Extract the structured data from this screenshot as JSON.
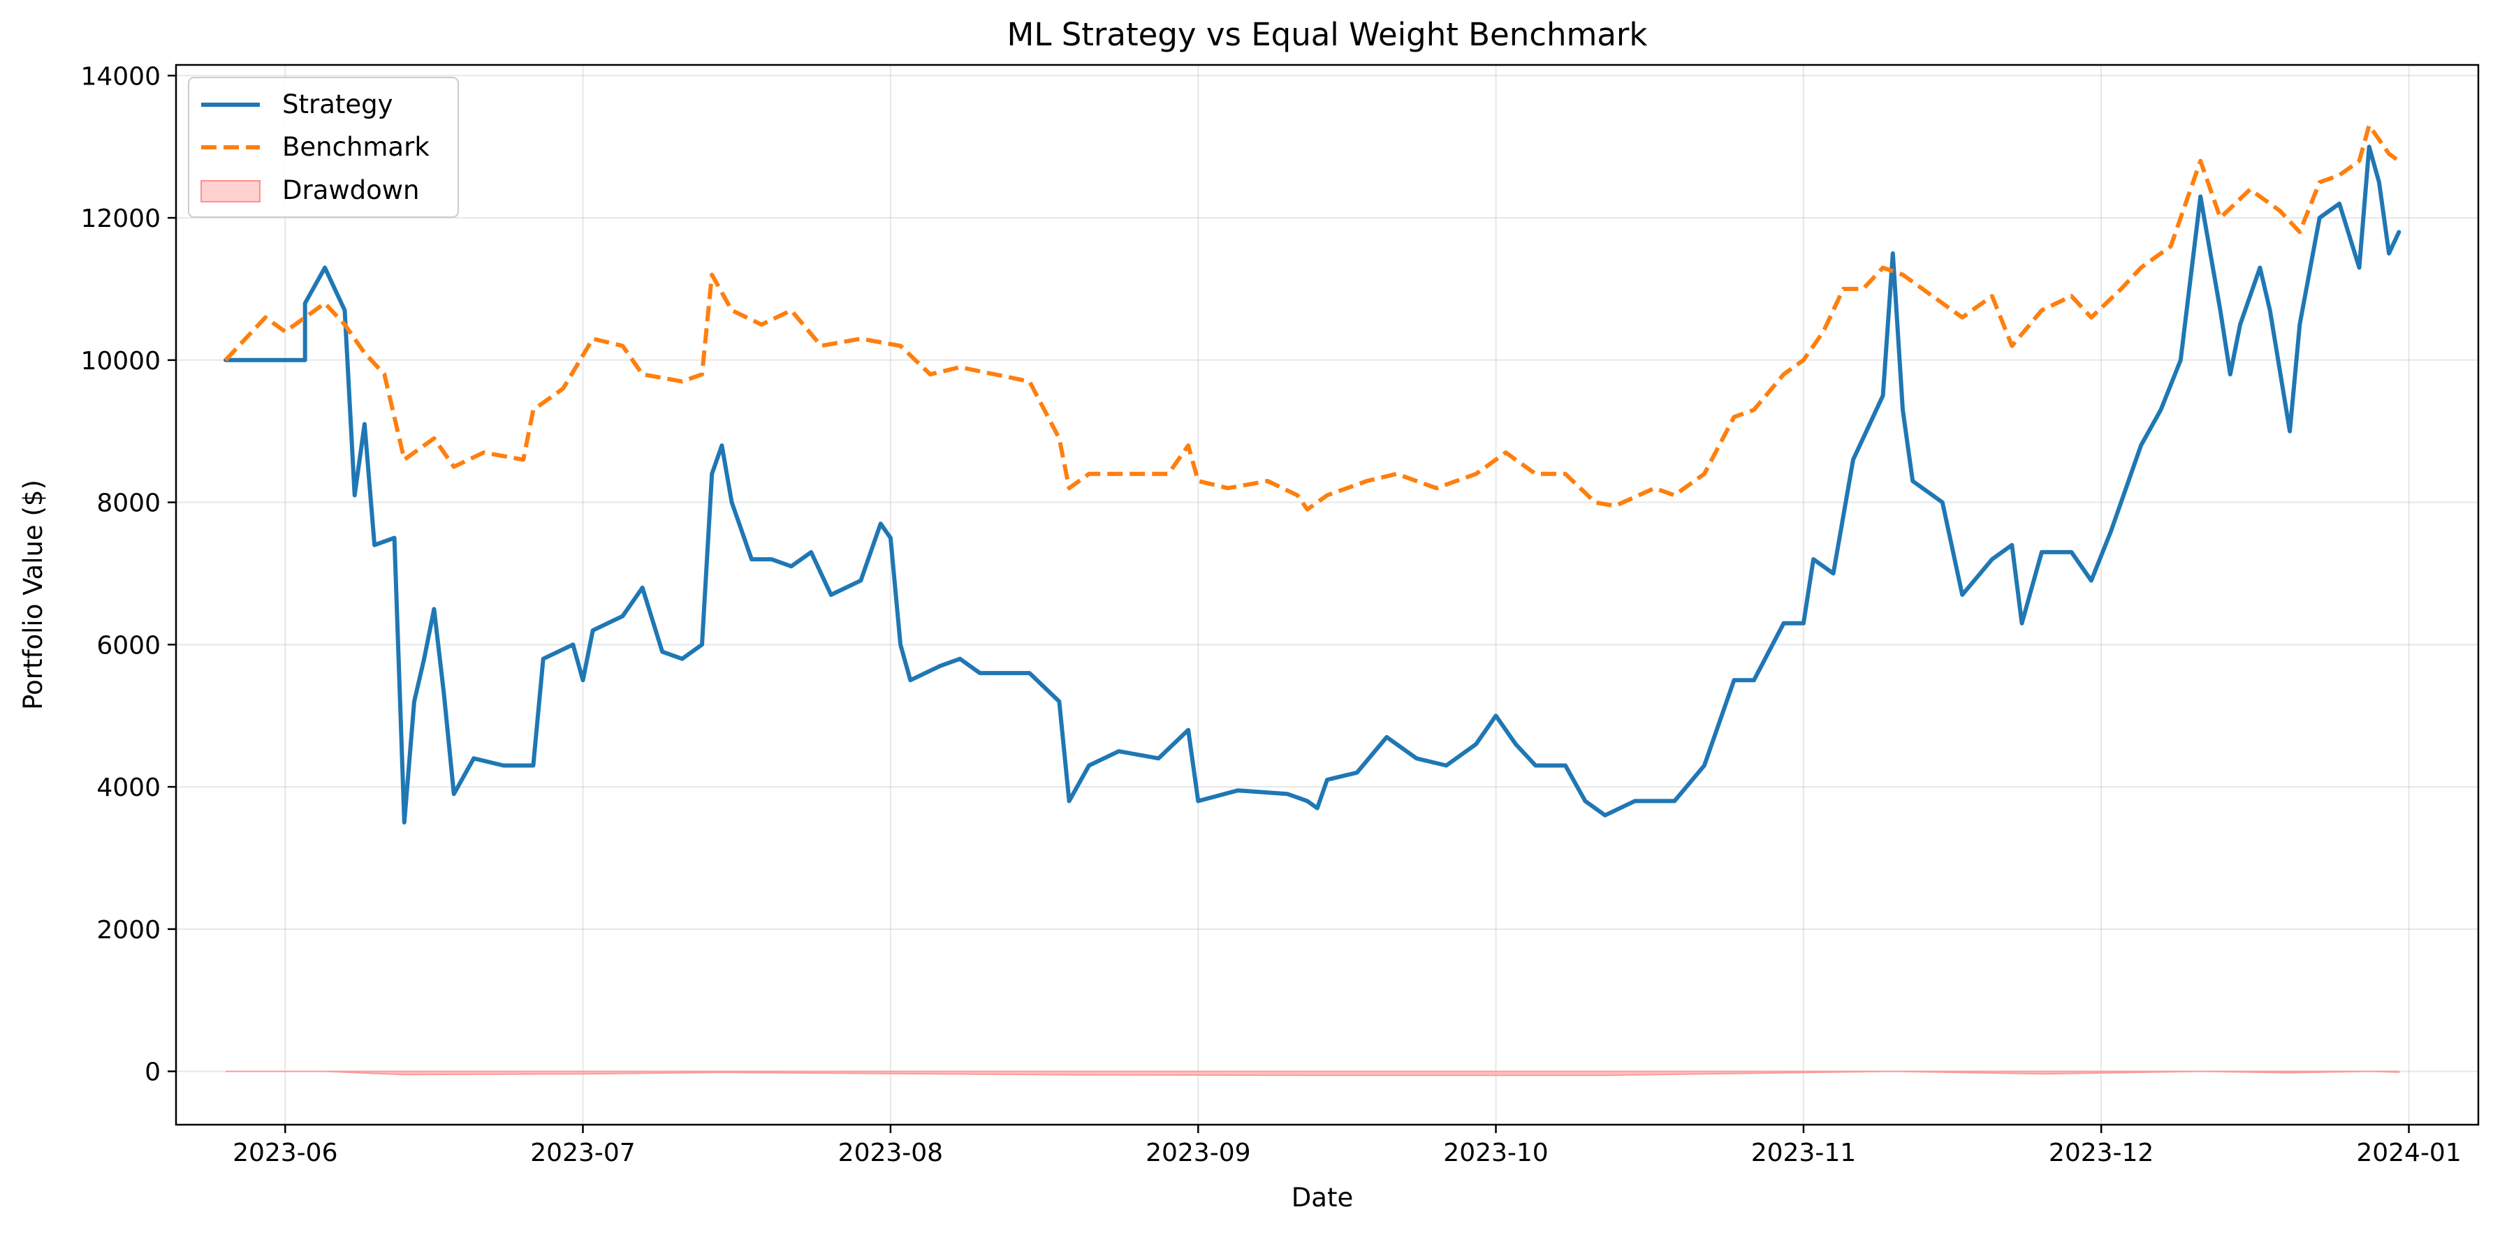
{
  "chart_data": {
    "type": "line",
    "title": "ML Strategy vs Equal Weight Benchmark",
    "xlabel": "Date",
    "ylabel": "Portfolio Value ($)",
    "xlim": [
      "2023-05-21",
      "2024-01-08"
    ],
    "ylim": [
      -750,
      14150
    ],
    "x_ticks": [
      "2023-06-01",
      "2023-07-01",
      "2023-08-01",
      "2023-09-01",
      "2023-10-01",
      "2023-11-01",
      "2023-12-01",
      "2024-01-01"
    ],
    "x_tick_labels": [
      "2023-06",
      "2023-07",
      "2023-08",
      "2023-09",
      "2023-10",
      "2023-11",
      "2023-12",
      "2024-01"
    ],
    "y_ticks": [
      0,
      2000,
      4000,
      6000,
      8000,
      10000,
      12000,
      14000
    ],
    "y_tick_labels": [
      "0",
      "2000",
      "4000",
      "6000",
      "8000",
      "10000",
      "12000",
      "14000"
    ],
    "grid": true,
    "legend_position": "top-left",
    "series": [
      {
        "name": "Strategy",
        "style": "solid",
        "color": "#1f77b4",
        "points": [
          [
            "2023-05-26",
            10000
          ],
          [
            "2023-06-03",
            10000
          ],
          [
            "2023-06-03",
            10800
          ],
          [
            "2023-06-05",
            11300
          ],
          [
            "2023-06-07",
            10700
          ],
          [
            "2023-06-08",
            8100
          ],
          [
            "2023-06-09",
            9100
          ],
          [
            "2023-06-10",
            7400
          ],
          [
            "2023-06-12",
            7500
          ],
          [
            "2023-06-13",
            3500
          ],
          [
            "2023-06-14",
            5200
          ],
          [
            "2023-06-15",
            5800
          ],
          [
            "2023-06-16",
            6500
          ],
          [
            "2023-06-17",
            5300
          ],
          [
            "2023-06-18",
            3900
          ],
          [
            "2023-06-20",
            4400
          ],
          [
            "2023-06-23",
            4300
          ],
          [
            "2023-06-26",
            4300
          ],
          [
            "2023-06-27",
            5800
          ],
          [
            "2023-06-30",
            6000
          ],
          [
            "2023-07-01",
            5500
          ],
          [
            "2023-07-02",
            6200
          ],
          [
            "2023-07-05",
            6400
          ],
          [
            "2023-07-07",
            6800
          ],
          [
            "2023-07-09",
            5900
          ],
          [
            "2023-07-11",
            5800
          ],
          [
            "2023-07-13",
            6000
          ],
          [
            "2023-07-14",
            8400
          ],
          [
            "2023-07-15",
            8800
          ],
          [
            "2023-07-16",
            8000
          ],
          [
            "2023-07-17",
            7600
          ],
          [
            "2023-07-18",
            7200
          ],
          [
            "2023-07-20",
            7200
          ],
          [
            "2023-07-22",
            7100
          ],
          [
            "2023-07-24",
            7300
          ],
          [
            "2023-07-26",
            6700
          ],
          [
            "2023-07-29",
            6900
          ],
          [
            "2023-07-31",
            7700
          ],
          [
            "2023-08-01",
            7500
          ],
          [
            "2023-08-02",
            6000
          ],
          [
            "2023-08-03",
            5500
          ],
          [
            "2023-08-06",
            5700
          ],
          [
            "2023-08-08",
            5800
          ],
          [
            "2023-08-10",
            5600
          ],
          [
            "2023-08-15",
            5600
          ],
          [
            "2023-08-18",
            5200
          ],
          [
            "2023-08-19",
            3800
          ],
          [
            "2023-08-21",
            4300
          ],
          [
            "2023-08-24",
            4500
          ],
          [
            "2023-08-28",
            4400
          ],
          [
            "2023-08-31",
            4800
          ],
          [
            "2023-09-01",
            3800
          ],
          [
            "2023-09-05",
            3950
          ],
          [
            "2023-09-10",
            3900
          ],
          [
            "2023-09-12",
            3800
          ],
          [
            "2023-09-13",
            3700
          ],
          [
            "2023-09-14",
            4100
          ],
          [
            "2023-09-17",
            4200
          ],
          [
            "2023-09-20",
            4700
          ],
          [
            "2023-09-23",
            4400
          ],
          [
            "2023-09-26",
            4300
          ],
          [
            "2023-09-29",
            4600
          ],
          [
            "2023-10-01",
            5000
          ],
          [
            "2023-10-03",
            4600
          ],
          [
            "2023-10-05",
            4300
          ],
          [
            "2023-10-08",
            4300
          ],
          [
            "2023-10-10",
            3800
          ],
          [
            "2023-10-12",
            3600
          ],
          [
            "2023-10-15",
            3800
          ],
          [
            "2023-10-19",
            3800
          ],
          [
            "2023-10-22",
            4300
          ],
          [
            "2023-10-25",
            5500
          ],
          [
            "2023-10-27",
            5500
          ],
          [
            "2023-10-30",
            6300
          ],
          [
            "2023-11-01",
            6300
          ],
          [
            "2023-11-02",
            7200
          ],
          [
            "2023-11-04",
            7000
          ],
          [
            "2023-11-06",
            8600
          ],
          [
            "2023-11-08",
            9200
          ],
          [
            "2023-11-09",
            9500
          ],
          [
            "2023-11-10",
            11500
          ],
          [
            "2023-11-11",
            9300
          ],
          [
            "2023-11-12",
            8300
          ],
          [
            "2023-11-15",
            8000
          ],
          [
            "2023-11-17",
            6700
          ],
          [
            "2023-11-20",
            7200
          ],
          [
            "2023-11-22",
            7400
          ],
          [
            "2023-11-23",
            6300
          ],
          [
            "2023-11-25",
            7300
          ],
          [
            "2023-11-28",
            7300
          ],
          [
            "2023-11-30",
            6900
          ],
          [
            "2023-12-02",
            7600
          ],
          [
            "2023-12-05",
            8800
          ],
          [
            "2023-12-07",
            9300
          ],
          [
            "2023-12-09",
            10000
          ],
          [
            "2023-12-11",
            12300
          ],
          [
            "2023-12-13",
            10700
          ],
          [
            "2023-12-14",
            9800
          ],
          [
            "2023-12-15",
            10500
          ],
          [
            "2023-12-17",
            11300
          ],
          [
            "2023-12-18",
            10700
          ],
          [
            "2023-12-20",
            9000
          ],
          [
            "2023-12-21",
            10500
          ],
          [
            "2023-12-23",
            12000
          ],
          [
            "2023-12-25",
            12200
          ],
          [
            "2023-12-27",
            11300
          ],
          [
            "2023-12-28",
            13000
          ],
          [
            "2023-12-29",
            12500
          ],
          [
            "2023-12-30",
            11500
          ],
          [
            "2023-12-31",
            11800
          ]
        ]
      },
      {
        "name": "Benchmark",
        "style": "dashed",
        "color": "#ff7f0e",
        "points": [
          [
            "2023-05-26",
            10000
          ],
          [
            "2023-05-28",
            10300
          ],
          [
            "2023-05-30",
            10600
          ],
          [
            "2023-06-01",
            10400
          ],
          [
            "2023-06-03",
            10600
          ],
          [
            "2023-06-05",
            10800
          ],
          [
            "2023-06-07",
            10500
          ],
          [
            "2023-06-09",
            10100
          ],
          [
            "2023-06-11",
            9800
          ],
          [
            "2023-06-13",
            8600
          ],
          [
            "2023-06-14",
            8700
          ],
          [
            "2023-06-16",
            8900
          ],
          [
            "2023-06-18",
            8500
          ],
          [
            "2023-06-21",
            8700
          ],
          [
            "2023-06-25",
            8600
          ],
          [
            "2023-06-26",
            9300
          ],
          [
            "2023-06-29",
            9600
          ],
          [
            "2023-07-02",
            10300
          ],
          [
            "2023-07-05",
            10200
          ],
          [
            "2023-07-07",
            9800
          ],
          [
            "2023-07-11",
            9700
          ],
          [
            "2023-07-13",
            9800
          ],
          [
            "2023-07-14",
            11200
          ],
          [
            "2023-07-16",
            10700
          ],
          [
            "2023-07-19",
            10500
          ],
          [
            "2023-07-22",
            10700
          ],
          [
            "2023-07-25",
            10200
          ],
          [
            "2023-07-29",
            10300
          ],
          [
            "2023-08-02",
            10200
          ],
          [
            "2023-08-05",
            9800
          ],
          [
            "2023-08-08",
            9900
          ],
          [
            "2023-08-15",
            9700
          ],
          [
            "2023-08-18",
            8900
          ],
          [
            "2023-08-19",
            8200
          ],
          [
            "2023-08-21",
            8400
          ],
          [
            "2023-08-25",
            8400
          ],
          [
            "2023-08-29",
            8400
          ],
          [
            "2023-08-31",
            8800
          ],
          [
            "2023-09-01",
            8300
          ],
          [
            "2023-09-04",
            8200
          ],
          [
            "2023-09-08",
            8300
          ],
          [
            "2023-09-11",
            8100
          ],
          [
            "2023-09-12",
            7900
          ],
          [
            "2023-09-14",
            8100
          ],
          [
            "2023-09-18",
            8300
          ],
          [
            "2023-09-21",
            8400
          ],
          [
            "2023-09-25",
            8200
          ],
          [
            "2023-09-29",
            8400
          ],
          [
            "2023-10-02",
            8700
          ],
          [
            "2023-10-05",
            8400
          ],
          [
            "2023-10-08",
            8400
          ],
          [
            "2023-10-11",
            8000
          ],
          [
            "2023-10-13",
            7950
          ],
          [
            "2023-10-17",
            8200
          ],
          [
            "2023-10-19",
            8100
          ],
          [
            "2023-10-22",
            8400
          ],
          [
            "2023-10-25",
            9200
          ],
          [
            "2023-10-27",
            9300
          ],
          [
            "2023-10-30",
            9800
          ],
          [
            "2023-11-01",
            10000
          ],
          [
            "2023-11-03",
            10400
          ],
          [
            "2023-11-05",
            11000
          ],
          [
            "2023-11-07",
            11000
          ],
          [
            "2023-11-09",
            11300
          ],
          [
            "2023-11-11",
            11200
          ],
          [
            "2023-11-14",
            10900
          ],
          [
            "2023-11-17",
            10600
          ],
          [
            "2023-11-20",
            10900
          ],
          [
            "2023-11-22",
            10200
          ],
          [
            "2023-11-25",
            10700
          ],
          [
            "2023-11-28",
            10900
          ],
          [
            "2023-11-30",
            10600
          ],
          [
            "2023-12-03",
            11000
          ],
          [
            "2023-12-05",
            11300
          ],
          [
            "2023-12-08",
            11600
          ],
          [
            "2023-12-11",
            12800
          ],
          [
            "2023-12-13",
            12000
          ],
          [
            "2023-12-16",
            12400
          ],
          [
            "2023-12-19",
            12100
          ],
          [
            "2023-12-21",
            11800
          ],
          [
            "2023-12-23",
            12500
          ],
          [
            "2023-12-25",
            12600
          ],
          [
            "2023-12-27",
            12800
          ],
          [
            "2023-12-28",
            13300
          ],
          [
            "2023-12-30",
            12900
          ],
          [
            "2023-12-31",
            12800
          ]
        ]
      },
      {
        "name": "Drawdown",
        "style": "fill",
        "color": "#ffb3b3",
        "points": [
          [
            "2023-05-26",
            0
          ],
          [
            "2023-06-05",
            0
          ],
          [
            "2023-06-13",
            -45
          ],
          [
            "2023-07-01",
            -35
          ],
          [
            "2023-07-15",
            -15
          ],
          [
            "2023-08-20",
            -50
          ],
          [
            "2023-09-12",
            -55
          ],
          [
            "2023-10-12",
            -55
          ],
          [
            "2023-11-10",
            0
          ],
          [
            "2023-11-25",
            -35
          ],
          [
            "2023-12-11",
            0
          ],
          [
            "2023-12-20",
            -20
          ],
          [
            "2023-12-28",
            0
          ],
          [
            "2023-12-31",
            -12
          ]
        ]
      }
    ]
  }
}
